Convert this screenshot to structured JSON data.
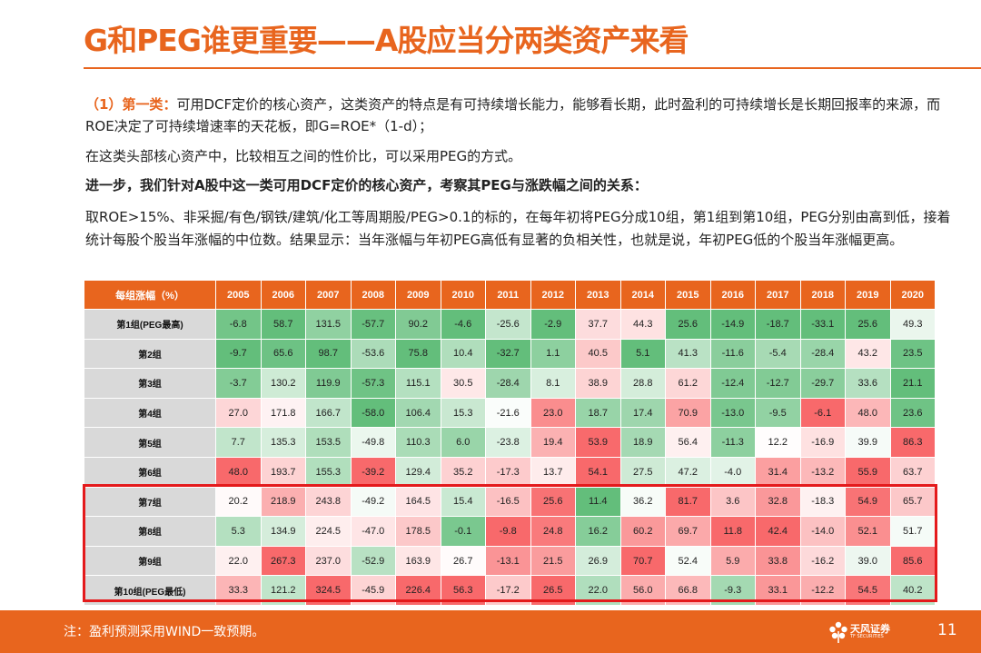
{
  "title": "G和PEG谁更重要——A股应当分两类资产来看",
  "paragraphs": {
    "p1_lead": "（1）第一类：",
    "p1_text": "可用DCF定价的核心资产，这类资产的特点是有可持续增长能力，能够看长期，此时盈利的可持续增长是长期回报率的来源，而ROE决定了可持续增速率的天花板，即G=ROE*（1-d）；",
    "p2": "在这类头部核心资产中，比较相互之间的性价比，可以采用PEG的方式。",
    "p3": "进一步，我们针对A股中这一类可用DCF定价的核心资产，考察其PEG与涨跌幅之间的关系：",
    "p4": "取ROE>15%、非采掘/有色/钢铁/建筑/化工等周期股/PEG>0.1的标的，在每年初将PEG分成10组，第1组到第10组，PEG分别由高到低，接着统计每股个股当年涨幅的中位数。结果显示：当年涨幅与年初PEG高低有显著的负相关性，也就是说，年初PEG低的个股当年涨幅更高。"
  },
  "table": {
    "corner": "每组涨幅（%）",
    "years": [
      "2005",
      "2006",
      "2007",
      "2008",
      "2009",
      "2010",
      "2011",
      "2012",
      "2013",
      "2014",
      "2015",
      "2016",
      "2017",
      "2018",
      "2019",
      "2020"
    ],
    "groups": [
      "第1组(PEG最高)",
      "第2组",
      "第3组",
      "第4组",
      "第5组",
      "第6组",
      "第7组",
      "第8组",
      "第9组",
      "第10组(PEG最低)"
    ],
    "values": [
      [
        -6.8,
        58.7,
        131.5,
        -57.7,
        90.2,
        -4.6,
        -25.6,
        -2.9,
        37.7,
        44.3,
        25.6,
        -14.9,
        -18.7,
        -33.1,
        25.6,
        49.3
      ],
      [
        -9.7,
        65.6,
        98.7,
        -53.6,
        75.8,
        10.4,
        -32.7,
        1.1,
        40.5,
        5.1,
        41.3,
        -11.6,
        -5.4,
        -28.4,
        43.2,
        23.5
      ],
      [
        -3.7,
        130.2,
        119.9,
        -57.3,
        115.1,
        30.5,
        -28.4,
        8.1,
        38.9,
        28.8,
        61.2,
        -12.4,
        -12.7,
        -29.7,
        33.6,
        21.1
      ],
      [
        27.0,
        171.8,
        166.7,
        -58.0,
        106.4,
        15.3,
        -21.6,
        23.0,
        18.7,
        17.4,
        70.9,
        -13.0,
        -9.5,
        -6.1,
        48.0,
        23.6
      ],
      [
        7.7,
        135.3,
        153.5,
        -49.8,
        110.3,
        6.0,
        -23.8,
        19.4,
        53.9,
        18.9,
        56.4,
        -11.3,
        12.2,
        -16.9,
        39.9,
        86.3
      ],
      [
        48.0,
        193.7,
        155.3,
        -39.2,
        129.4,
        35.2,
        -17.3,
        13.7,
        54.1,
        27.5,
        47.2,
        -4.0,
        31.4,
        -13.2,
        55.9,
        63.7
      ],
      [
        20.2,
        218.9,
        243.8,
        -49.2,
        164.5,
        15.4,
        -16.5,
        25.6,
        11.4,
        36.2,
        81.7,
        3.6,
        32.8,
        -18.3,
        54.9,
        65.7
      ],
      [
        5.3,
        134.9,
        224.5,
        -47.0,
        178.5,
        -0.1,
        -9.8,
        24.8,
        16.2,
        60.2,
        69.7,
        11.8,
        42.4,
        -14.0,
        52.1,
        51.7
      ],
      [
        22.0,
        267.3,
        237.0,
        -52.9,
        163.9,
        26.7,
        -13.1,
        21.5,
        26.9,
        70.7,
        52.4,
        5.9,
        33.8,
        -16.2,
        39.0,
        85.6
      ],
      [
        33.3,
        121.2,
        324.5,
        -45.9,
        226.4,
        56.3,
        -17.2,
        26.5,
        22.0,
        56.0,
        66.8,
        -9.3,
        33.1,
        -12.2,
        54.5,
        40.2
      ]
    ],
    "colors": {
      "high": "#f8696b",
      "mid": "#ffffff",
      "low": "#63be7b",
      "header": "#e8651e",
      "label_bg": "#d9d9d9",
      "highlight_border": "#e41a1c"
    }
  },
  "footer": {
    "note": "注：盈利预测采用WIND一致预期。",
    "logo_text": "天风证券",
    "logo_sub": "TF SECURITIES",
    "page_number": "11"
  }
}
